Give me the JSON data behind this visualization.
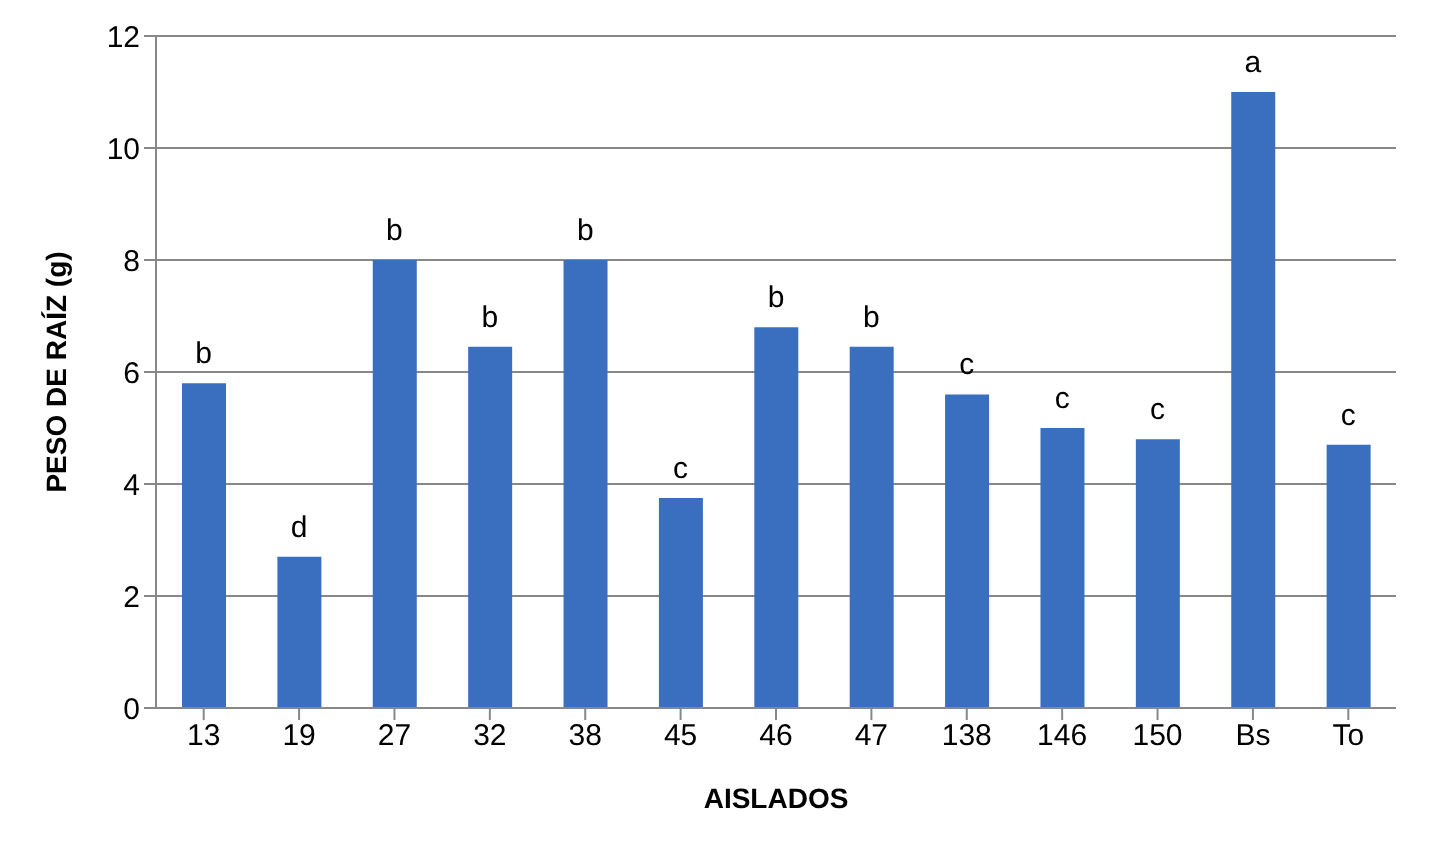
{
  "chart_data": {
    "type": "bar",
    "xlabel": "AISLADOS",
    "ylabel": "PESO DE RAÍZ (g)",
    "categories": [
      "13",
      "19",
      "27",
      "32",
      "38",
      "45",
      "46",
      "47",
      "138",
      "146",
      "150",
      "Bs",
      "To"
    ],
    "values": [
      5.8,
      2.7,
      8.0,
      6.45,
      8.0,
      3.75,
      6.8,
      6.45,
      5.6,
      5.0,
      4.8,
      11.0,
      4.7
    ],
    "color": "#3a6fc0",
    "ylim": [
      0,
      12
    ],
    "yticks": [
      0,
      2,
      4,
      6,
      8,
      10,
      12
    ],
    "grid": "y",
    "annotations": [
      {
        "text": "b",
        "x": "13",
        "y": 5.8
      },
      {
        "text": "d",
        "x": "19",
        "y": 2.7
      },
      {
        "text": "b",
        "x": "27",
        "y": 8.0
      },
      {
        "text": "b",
        "x": "32",
        "y": 6.45
      },
      {
        "text": "b",
        "x": "38",
        "y": 8.0
      },
      {
        "text": "c",
        "x": "45",
        "y": 3.75
      },
      {
        "text": "b",
        "x": "46",
        "y": 6.8
      },
      {
        "text": "b",
        "x": "47",
        "y": 6.45
      },
      {
        "text": "c",
        "x": "138",
        "y": 5.6
      },
      {
        "text": "c",
        "x": "146",
        "y": 5.0
      },
      {
        "text": "c",
        "x": "150",
        "y": 4.8
      },
      {
        "text": "a",
        "x": "Bs",
        "y": 11.0
      },
      {
        "text": "c",
        "x": "To",
        "y": 4.7
      }
    ]
  }
}
